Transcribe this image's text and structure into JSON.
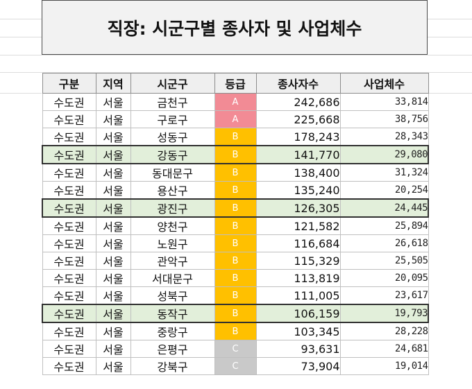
{
  "title": "직장: 시군구별 종사자 및 사업체수",
  "headers": [
    "구분",
    "지역",
    "시군구",
    "등급",
    "종사자수",
    "사업체수"
  ],
  "colors": {
    "grade_A": "#f28b95",
    "grade_B": "#ffc000",
    "grade_C": "#c9c9c9",
    "highlight_row": "#e2efda",
    "header_bg": "#efefef"
  },
  "rows": [
    {
      "region_type": "수도권",
      "region": "서울",
      "district": "금천구",
      "grade": "A",
      "workers": "242,686",
      "businesses": "33,814",
      "highlight": false
    },
    {
      "region_type": "수도권",
      "region": "서울",
      "district": "구로구",
      "grade": "A",
      "workers": "225,668",
      "businesses": "38,756",
      "highlight": false
    },
    {
      "region_type": "수도권",
      "region": "서울",
      "district": "성동구",
      "grade": "B",
      "workers": "178,243",
      "businesses": "28,343",
      "highlight": false
    },
    {
      "region_type": "수도권",
      "region": "서울",
      "district": "강동구",
      "grade": "B",
      "workers": "141,770",
      "businesses": "29,080",
      "highlight": true
    },
    {
      "region_type": "수도권",
      "region": "서울",
      "district": "동대문구",
      "grade": "B",
      "workers": "138,400",
      "businesses": "31,324",
      "highlight": false
    },
    {
      "region_type": "수도권",
      "region": "서울",
      "district": "용산구",
      "grade": "B",
      "workers": "135,240",
      "businesses": "20,254",
      "highlight": false
    },
    {
      "region_type": "수도권",
      "region": "서울",
      "district": "광진구",
      "grade": "B",
      "workers": "126,305",
      "businesses": "24,445",
      "highlight": true
    },
    {
      "region_type": "수도권",
      "region": "서울",
      "district": "양천구",
      "grade": "B",
      "workers": "121,582",
      "businesses": "25,894",
      "highlight": false
    },
    {
      "region_type": "수도권",
      "region": "서울",
      "district": "노원구",
      "grade": "B",
      "workers": "116,684",
      "businesses": "26,618",
      "highlight": false
    },
    {
      "region_type": "수도권",
      "region": "서울",
      "district": "관악구",
      "grade": "B",
      "workers": "115,329",
      "businesses": "25,505",
      "highlight": false
    },
    {
      "region_type": "수도권",
      "region": "서울",
      "district": "서대문구",
      "grade": "B",
      "workers": "113,819",
      "businesses": "20,095",
      "highlight": false
    },
    {
      "region_type": "수도권",
      "region": "서울",
      "district": "성북구",
      "grade": "B",
      "workers": "111,005",
      "businesses": "23,617",
      "highlight": false
    },
    {
      "region_type": "수도권",
      "region": "서울",
      "district": "동작구",
      "grade": "B",
      "workers": "106,159",
      "businesses": "19,793",
      "highlight": true
    },
    {
      "region_type": "수도권",
      "region": "서울",
      "district": "중랑구",
      "grade": "B",
      "workers": "103,345",
      "businesses": "28,228",
      "highlight": false
    },
    {
      "region_type": "수도권",
      "region": "서울",
      "district": "은평구",
      "grade": "C",
      "workers": "93,631",
      "businesses": "24,681",
      "highlight": false
    },
    {
      "region_type": "수도권",
      "region": "서울",
      "district": "강북구",
      "grade": "C",
      "workers": "73,904",
      "businesses": "19,014",
      "highlight": false
    }
  ]
}
